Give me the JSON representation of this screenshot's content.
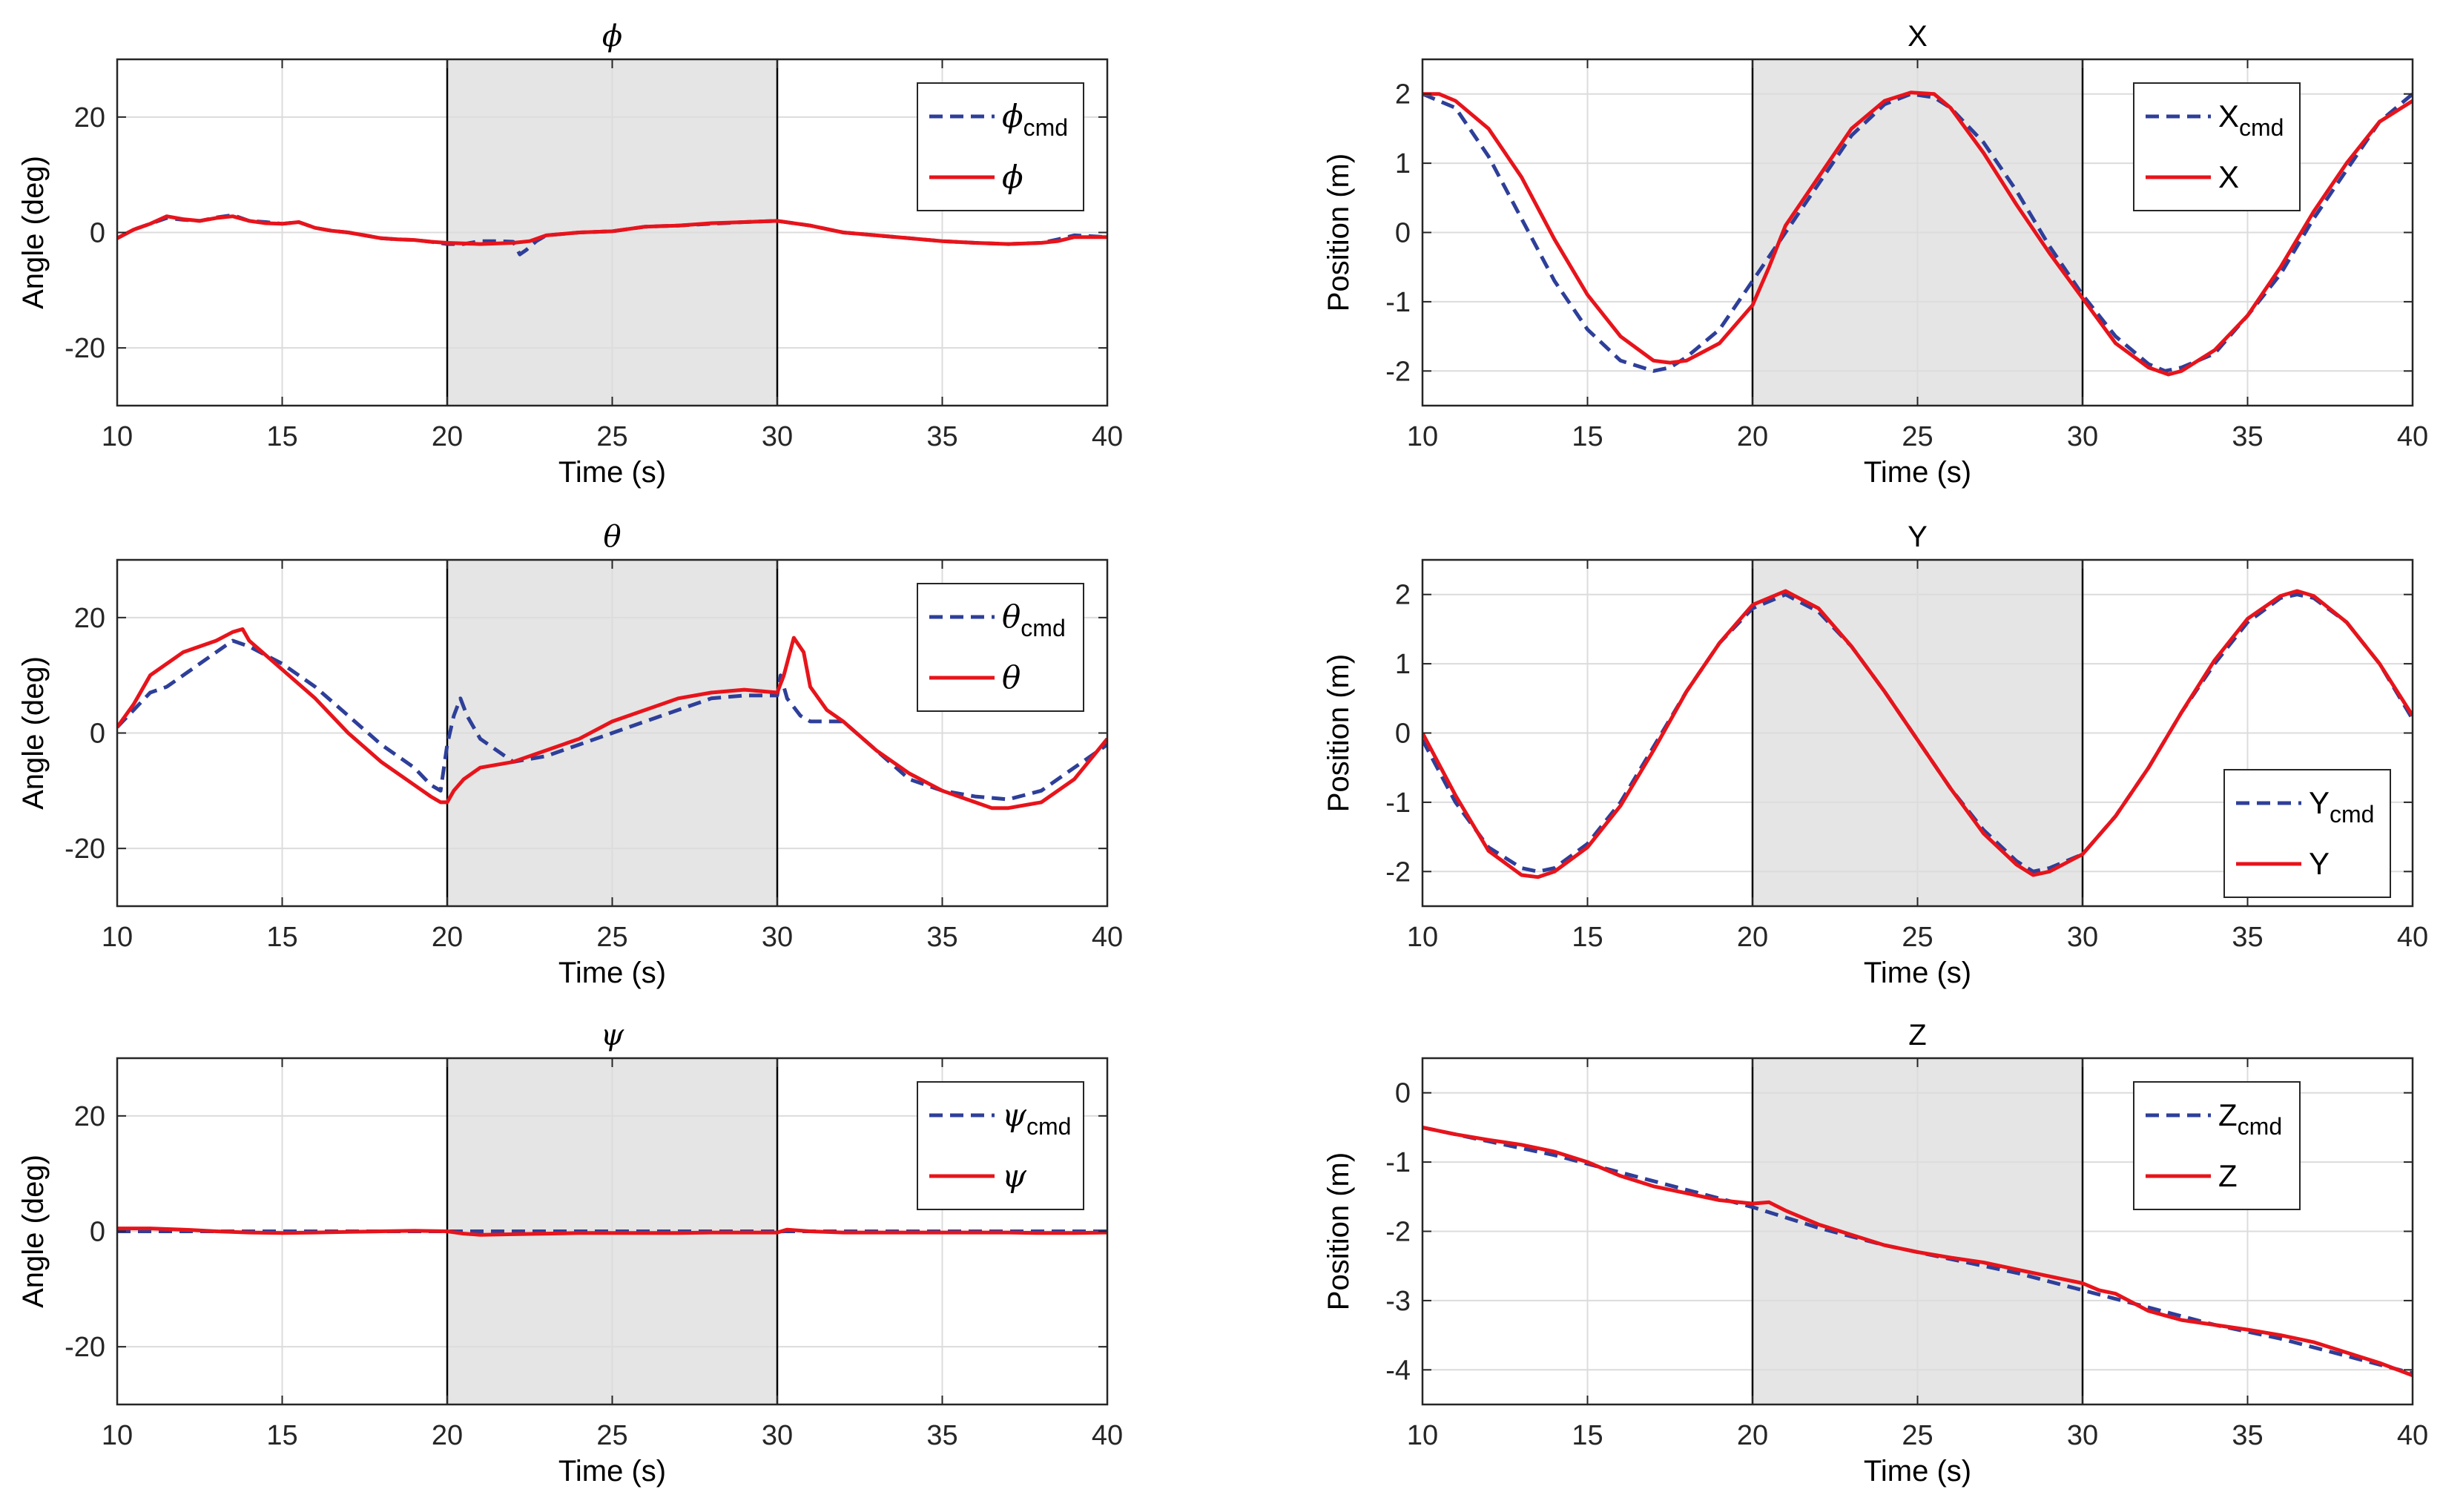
{
  "figure": {
    "shaded_interval": [
      20,
      30
    ],
    "colors": {
      "cmd": "#2E3F99",
      "actual": "#E8141C",
      "shade": "#E5E5E5",
      "grid": "#DCDCDC",
      "axis": "#262626",
      "background": "#FFFFFF"
    }
  },
  "chart_data": [
    {
      "type": "line",
      "title": "ϕ",
      "title_style": "greek",
      "xlabel": "Time (s)",
      "ylabel": "Angle (deg)",
      "xlim": [
        10,
        40
      ],
      "ylim": [
        -30,
        30
      ],
      "xticks": [
        10,
        15,
        20,
        25,
        30,
        35,
        40
      ],
      "yticks": [
        -20,
        0,
        20
      ],
      "grid": true,
      "legend_placement": "top-right",
      "series": [
        {
          "name": "ϕ",
          "subscript": "cmd",
          "style": "dashed",
          "x": [
            10,
            10.5,
            11,
            11.5,
            12,
            12.5,
            13,
            13.5,
            14,
            14.5,
            15,
            15.5,
            16,
            16.5,
            17,
            17.5,
            18,
            18.5,
            19,
            19.5,
            20,
            20.5,
            21,
            21.5,
            22,
            22.2,
            22.4,
            22.7,
            23,
            24,
            25,
            26,
            27,
            28,
            29,
            30,
            31,
            32,
            33,
            34,
            35,
            36,
            37,
            38,
            38.5,
            39,
            40
          ],
          "y": [
            -1,
            0.5,
            1.5,
            2.5,
            2.2,
            2,
            2.6,
            3,
            2,
            1.8,
            1.5,
            1.8,
            0.8,
            0.3,
            0,
            -0.5,
            -1,
            -1.2,
            -1.3,
            -1.6,
            -2,
            -2,
            -1.5,
            -1.5,
            -1.6,
            -3.8,
            -3,
            -1.5,
            -0.5,
            0,
            0.2,
            1,
            1.2,
            1.5,
            1.8,
            2,
            1.2,
            0,
            -0.5,
            -1,
            -1.5,
            -1.8,
            -2,
            -1.8,
            -1.2,
            -0.5,
            -0.8
          ]
        },
        {
          "name": "ϕ",
          "subscript": "",
          "style": "solid",
          "x": [
            10,
            10.5,
            11,
            11.5,
            12,
            12.5,
            13,
            13.5,
            14,
            14.5,
            15,
            15.5,
            16,
            16.5,
            17,
            17.5,
            18,
            18.5,
            19,
            19.5,
            20,
            21,
            22,
            22.5,
            23,
            24,
            25,
            26,
            27,
            28,
            29,
            30,
            31,
            32,
            33,
            34,
            35,
            36,
            37,
            38,
            38.5,
            39,
            40
          ],
          "y": [
            -1,
            0.5,
            1.5,
            2.8,
            2.3,
            2,
            2.5,
            2.8,
            2,
            1.6,
            1.5,
            1.8,
            0.8,
            0.3,
            0,
            -0.5,
            -1,
            -1.2,
            -1.3,
            -1.6,
            -1.8,
            -2,
            -1.8,
            -1.5,
            -0.5,
            0,
            0.2,
            1,
            1.2,
            1.6,
            1.8,
            2,
            1.2,
            0,
            -0.5,
            -1,
            -1.5,
            -1.8,
            -2,
            -1.8,
            -1.5,
            -0.8,
            -0.8
          ]
        }
      ]
    },
    {
      "type": "line",
      "title": "X",
      "title_style": "roman",
      "xlabel": "Time (s)",
      "ylabel": "Position (m)",
      "xlim": [
        10,
        40
      ],
      "ylim": [
        -2.5,
        2.5
      ],
      "xticks": [
        10,
        15,
        20,
        25,
        30,
        35,
        40
      ],
      "yticks": [
        -2,
        -1,
        0,
        1,
        2
      ],
      "grid": true,
      "legend_placement": "top-right",
      "series": [
        {
          "name": "X",
          "subscript": "cmd",
          "style": "dashed",
          "x": [
            10,
            11,
            12,
            13,
            14,
            15,
            16,
            17,
            17.5,
            18,
            19,
            20,
            21,
            22,
            23,
            24,
            24.8,
            25.5,
            26,
            27,
            28,
            29,
            30,
            31,
            32,
            32.5,
            33,
            34,
            35,
            36,
            37,
            38,
            39,
            40
          ],
          "y": [
            2,
            1.8,
            1.1,
            0.2,
            -0.7,
            -1.4,
            -1.85,
            -2,
            -1.95,
            -1.8,
            -1.4,
            -0.7,
            0,
            0.7,
            1.4,
            1.85,
            2,
            1.95,
            1.8,
            1.3,
            0.6,
            -0.2,
            -0.9,
            -1.5,
            -1.9,
            -2,
            -1.95,
            -1.75,
            -1.2,
            -0.6,
            0.2,
            0.9,
            1.6,
            2
          ]
        },
        {
          "name": "X",
          "subscript": "",
          "style": "solid",
          "x": [
            10,
            10.5,
            11,
            12,
            13,
            14,
            15,
            16,
            17,
            17.5,
            18,
            19,
            20,
            20.5,
            21,
            22,
            23,
            24,
            24.8,
            25.5,
            26,
            27,
            28,
            29,
            30,
            31,
            32,
            32.6,
            33,
            34,
            35,
            36,
            37,
            38,
            39,
            40
          ],
          "y": [
            2,
            2,
            1.9,
            1.5,
            0.8,
            -0.1,
            -0.9,
            -1.5,
            -1.85,
            -1.88,
            -1.85,
            -1.6,
            -1.05,
            -0.5,
            0.1,
            0.8,
            1.5,
            1.9,
            2.02,
            2,
            1.8,
            1.15,
            0.4,
            -0.3,
            -0.95,
            -1.6,
            -1.95,
            -2.05,
            -2,
            -1.7,
            -1.2,
            -0.5,
            0.3,
            1,
            1.6,
            1.9
          ]
        }
      ]
    },
    {
      "type": "line",
      "title": "θ",
      "title_style": "greek",
      "xlabel": "Time (s)",
      "ylabel": "Angle (deg)",
      "xlim": [
        10,
        40
      ],
      "ylim": [
        -30,
        30
      ],
      "xticks": [
        10,
        15,
        20,
        25,
        30,
        35,
        40
      ],
      "yticks": [
        -20,
        0,
        20
      ],
      "grid": true,
      "legend_placement": "top-right",
      "series": [
        {
          "name": "θ",
          "subscript": "cmd",
          "style": "dashed",
          "x": [
            10,
            10.5,
            11,
            11.5,
            12,
            13,
            13.5,
            14,
            15,
            16,
            17,
            18,
            19,
            19.5,
            19.8,
            20,
            20.2,
            20.4,
            20.6,
            21,
            21.5,
            22,
            23,
            24,
            25,
            26,
            27,
            28,
            29,
            30,
            30.1,
            30.3,
            30.7,
            31,
            32,
            33,
            34,
            35,
            36,
            37,
            38,
            39,
            40
          ],
          "y": [
            1,
            4,
            7,
            8,
            10,
            14,
            16,
            15,
            12,
            8,
            3,
            -2,
            -6,
            -9,
            -10,
            -2,
            3,
            6,
            3,
            -1,
            -3,
            -5,
            -4,
            -2,
            0,
            2,
            4,
            6,
            6.5,
            6.5,
            10,
            6,
            3,
            2,
            2,
            -3,
            -8,
            -10,
            -11,
            -11.5,
            -10,
            -6,
            -2
          ]
        },
        {
          "name": "θ",
          "subscript": "",
          "style": "solid",
          "x": [
            10,
            10.5,
            11,
            11.5,
            12,
            13,
            13.5,
            13.8,
            14,
            15,
            16,
            17,
            18,
            19,
            19.5,
            19.8,
            20,
            20.2,
            20.5,
            21,
            22,
            23,
            24,
            25,
            26,
            27,
            28,
            29,
            30,
            30.2,
            30.5,
            30.8,
            31,
            31.5,
            32,
            33,
            34,
            35,
            36,
            36.5,
            37,
            38,
            39,
            40
          ],
          "y": [
            1,
            5,
            10,
            12,
            14,
            16,
            17.5,
            18,
            16,
            11,
            6,
            0,
            -5,
            -9,
            -11,
            -12,
            -12,
            -10,
            -8,
            -6,
            -5,
            -3,
            -1,
            2,
            4,
            6,
            7,
            7.5,
            7,
            10,
            16.5,
            14,
            8,
            4,
            2,
            -3,
            -7,
            -10,
            -12,
            -13,
            -13,
            -12,
            -8,
            -1
          ]
        }
      ]
    },
    {
      "type": "line",
      "title": "Y",
      "title_style": "roman",
      "xlabel": "Time (s)",
      "ylabel": "Position (m)",
      "xlim": [
        10,
        40
      ],
      "ylim": [
        -2.5,
        2.5
      ],
      "xticks": [
        10,
        15,
        20,
        25,
        30,
        35,
        40
      ],
      "yticks": [
        -2,
        -1,
        0,
        1,
        2
      ],
      "grid": true,
      "legend_placement": "bottom-right",
      "series": [
        {
          "name": "Y",
          "subscript": "cmd",
          "style": "dashed",
          "x": [
            10,
            11,
            12,
            13,
            13.5,
            14,
            15,
            16,
            17,
            18,
            19,
            20,
            21,
            22,
            23,
            24,
            25,
            26,
            27,
            28,
            28.5,
            29,
            30,
            31,
            32,
            33,
            34,
            35,
            36,
            36.5,
            37,
            38,
            39,
            40
          ],
          "y": [
            -0.1,
            -1,
            -1.65,
            -1.95,
            -2,
            -1.95,
            -1.6,
            -1,
            -0.2,
            0.6,
            1.3,
            1.8,
            2,
            1.75,
            1.25,
            0.6,
            -0.1,
            -0.8,
            -1.4,
            -1.85,
            -2,
            -1.95,
            -1.75,
            -1.2,
            -0.5,
            0.3,
            1,
            1.6,
            1.95,
            2,
            1.95,
            1.6,
            1,
            0.2
          ]
        },
        {
          "name": "Y",
          "subscript": "",
          "style": "solid",
          "x": [
            10,
            11,
            12,
            13,
            13.5,
            14,
            15,
            16,
            17,
            18,
            19,
            20,
            21,
            22,
            23,
            24,
            25,
            26,
            27,
            28,
            28.5,
            29,
            30,
            31,
            32,
            33,
            34,
            35,
            36,
            36.5,
            37,
            38,
            39,
            40
          ],
          "y": [
            0,
            -0.9,
            -1.7,
            -2.05,
            -2.08,
            -2,
            -1.65,
            -1.05,
            -0.25,
            0.6,
            1.3,
            1.85,
            2.05,
            1.8,
            1.25,
            0.6,
            -0.1,
            -0.8,
            -1.45,
            -1.9,
            -2.05,
            -2,
            -1.75,
            -1.2,
            -0.5,
            0.3,
            1.05,
            1.65,
            1.98,
            2.05,
            1.98,
            1.6,
            1,
            0.25
          ]
        }
      ]
    },
    {
      "type": "line",
      "title": "ψ",
      "title_style": "greek",
      "xlabel": "Time (s)",
      "ylabel": "Angle (deg)",
      "xlim": [
        10,
        40
      ],
      "ylim": [
        -30,
        30
      ],
      "xticks": [
        10,
        15,
        20,
        25,
        30,
        35,
        40
      ],
      "yticks": [
        -20,
        0,
        20
      ],
      "grid": true,
      "legend_placement": "top-right",
      "series": [
        {
          "name": "ψ",
          "subscript": "cmd",
          "style": "dashed",
          "x": [
            10,
            12,
            15,
            20,
            25,
            30,
            35,
            40
          ],
          "y": [
            0,
            0,
            0,
            0,
            0,
            0,
            0,
            0
          ]
        },
        {
          "name": "ψ",
          "subscript": "",
          "style": "solid",
          "x": [
            10,
            11,
            12,
            13,
            14,
            15,
            16,
            17,
            18,
            19,
            20,
            20.5,
            21,
            22,
            23,
            24,
            25,
            26,
            27,
            28,
            29,
            30,
            30.3,
            31,
            32,
            33,
            34,
            35,
            36,
            37,
            38,
            39,
            40
          ],
          "y": [
            0.5,
            0.5,
            0.3,
            0,
            -0.2,
            -0.3,
            -0.2,
            -0.1,
            0,
            0.1,
            0,
            -0.4,
            -0.6,
            -0.5,
            -0.4,
            -0.3,
            -0.3,
            -0.3,
            -0.3,
            -0.2,
            -0.2,
            -0.2,
            0.3,
            0,
            -0.2,
            -0.2,
            -0.2,
            -0.2,
            -0.2,
            -0.2,
            -0.3,
            -0.3,
            -0.2
          ]
        }
      ]
    },
    {
      "type": "line",
      "title": "Z",
      "title_style": "roman",
      "xlabel": "Time (s)",
      "ylabel": "Position (m)",
      "xlim": [
        10,
        40
      ],
      "ylim": [
        -4.5,
        0.5
      ],
      "xticks": [
        10,
        15,
        20,
        25,
        30,
        35,
        40
      ],
      "yticks": [
        -4,
        -3,
        -2,
        -1,
        0
      ],
      "grid": true,
      "legend_placement": "top-right",
      "series": [
        {
          "name": "Z",
          "subscript": "cmd",
          "style": "dashed",
          "x": [
            10,
            12,
            14,
            16,
            18,
            20,
            22,
            24,
            26,
            28,
            30,
            32,
            34,
            36,
            38,
            40
          ],
          "y": [
            -0.5,
            -0.7,
            -0.9,
            -1.15,
            -1.4,
            -1.65,
            -1.95,
            -2.2,
            -2.4,
            -2.6,
            -2.85,
            -3.1,
            -3.35,
            -3.55,
            -3.8,
            -4.05
          ]
        },
        {
          "name": "Z",
          "subscript": "",
          "style": "solid",
          "x": [
            10,
            11,
            12,
            13,
            14,
            15,
            16,
            17,
            18,
            19,
            20,
            20.5,
            21,
            22,
            23,
            24,
            25,
            26,
            27,
            28,
            29,
            30,
            30.5,
            31,
            32,
            33,
            34,
            35,
            36,
            37,
            38,
            39,
            40
          ],
          "y": [
            -0.5,
            -0.6,
            -0.68,
            -0.75,
            -0.85,
            -1,
            -1.2,
            -1.35,
            -1.45,
            -1.55,
            -1.6,
            -1.58,
            -1.7,
            -1.9,
            -2.05,
            -2.2,
            -2.3,
            -2.38,
            -2.45,
            -2.55,
            -2.65,
            -2.75,
            -2.85,
            -2.9,
            -3.15,
            -3.28,
            -3.35,
            -3.42,
            -3.5,
            -3.6,
            -3.75,
            -3.9,
            -4.08
          ]
        }
      ]
    }
  ]
}
